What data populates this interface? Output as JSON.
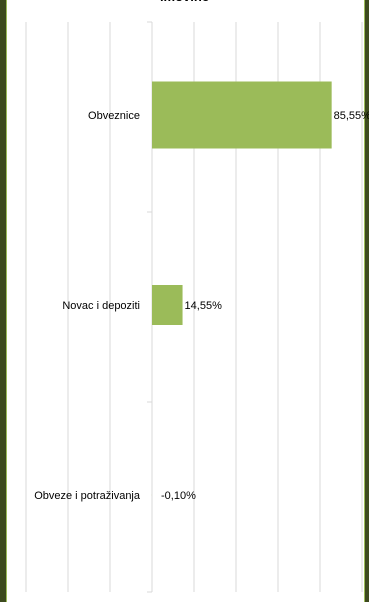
{
  "chart_data": {
    "type": "bar",
    "orientation": "horizontal",
    "title": "imovine",
    "categories": [
      "Obveznice",
      "Novac i depoziti",
      "Obveze i potraživanja"
    ],
    "values": [
      85.55,
      14.55,
      -0.1
    ],
    "value_labels": [
      "85,55%",
      "14,55%",
      "-0,10%"
    ],
    "xlim": [
      -80,
      100
    ],
    "grid": true,
    "bar_color": "#9bbb59",
    "legend": "none"
  }
}
